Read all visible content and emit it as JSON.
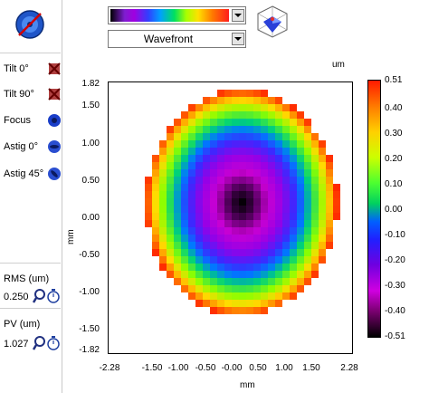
{
  "left_panel": {
    "aberrations": [
      {
        "label": "Tilt 0°",
        "icon": "tilt-0-toggle-icon"
      },
      {
        "label": "Tilt 90°",
        "icon": "tilt-90-toggle-icon"
      },
      {
        "label": "Focus",
        "icon": "focus-toggle-icon"
      },
      {
        "label": "Astig 0°",
        "icon": "astig-0-toggle-icon"
      },
      {
        "label": "Astig 45°",
        "icon": "astig-45-toggle-icon"
      }
    ],
    "rms": {
      "label": "RMS (um)",
      "value": "0.250"
    },
    "pv": {
      "label": "PV (um)",
      "value": "1.027"
    }
  },
  "toolbar": {
    "colormap": "rainbow-palette",
    "view_mode": "Wavefront"
  },
  "plot": {
    "unit": "um",
    "x_axis_title": "mm",
    "y_axis_title": "mm",
    "y_ticks": [
      "1.82",
      "1.50",
      "1.00",
      "0.50",
      "0.00",
      "-0.50",
      "-1.00",
      "-1.50",
      "-1.82"
    ],
    "x_ticks": [
      "-2.28",
      "-1.50",
      "-1.00",
      "-0.50",
      "-0.00",
      "0.50",
      "1.00",
      "1.50",
      "2.28"
    ],
    "colorbar_ticks": [
      "0.51",
      "0.40",
      "0.30",
      "0.20",
      "0.10",
      "0.00",
      "-0.10",
      "-0.20",
      "-0.30",
      "-0.40",
      "-0.51"
    ],
    "colors": {
      "center": "#000000",
      "mid": "#a000d8",
      "outer": "#8cff00",
      "edge": "#ff4000"
    }
  }
}
